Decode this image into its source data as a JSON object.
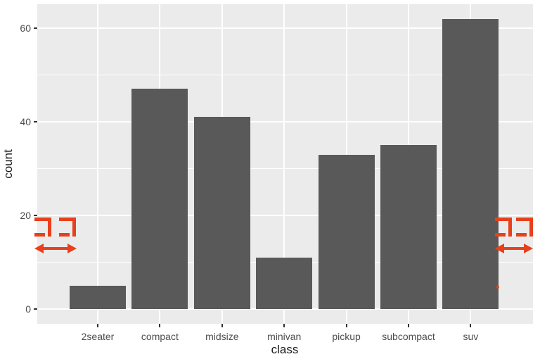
{
  "chart_data": {
    "type": "bar",
    "title": "",
    "categories": [
      "2seater",
      "compact",
      "midsize",
      "minivan",
      "pickup",
      "subcompact",
      "suv"
    ],
    "values": [
      5,
      47,
      41,
      11,
      33,
      35,
      62
    ],
    "xlabel": "class",
    "ylabel": "count",
    "ylim": [
      -3.1,
      65.1
    ],
    "yticks_major": [
      0,
      20,
      40,
      60
    ],
    "yticks_minor": [
      10,
      30,
      50
    ],
    "grid": "white horizontal major+minor, white vertical major at category centers",
    "legend": false,
    "style": "ggplot2 theme_gray",
    "colors": {
      "bar": "#595959",
      "panel_bg": "#EBEBEB",
      "grid": "#FFFFFF",
      "tick_text": "#4D4D4D",
      "axis_title": "#1A1A1A",
      "tick_mark": "#333333"
    }
  },
  "annotations": {
    "color": "#E8401C",
    "left_marks": {
      "bracket_glyphs": 2,
      "arrow": "double-headed-horizontal"
    },
    "right_marks": {
      "bracket_glyphs": 2,
      "arrow": "double-headed-horizontal"
    },
    "small_dot": true
  }
}
